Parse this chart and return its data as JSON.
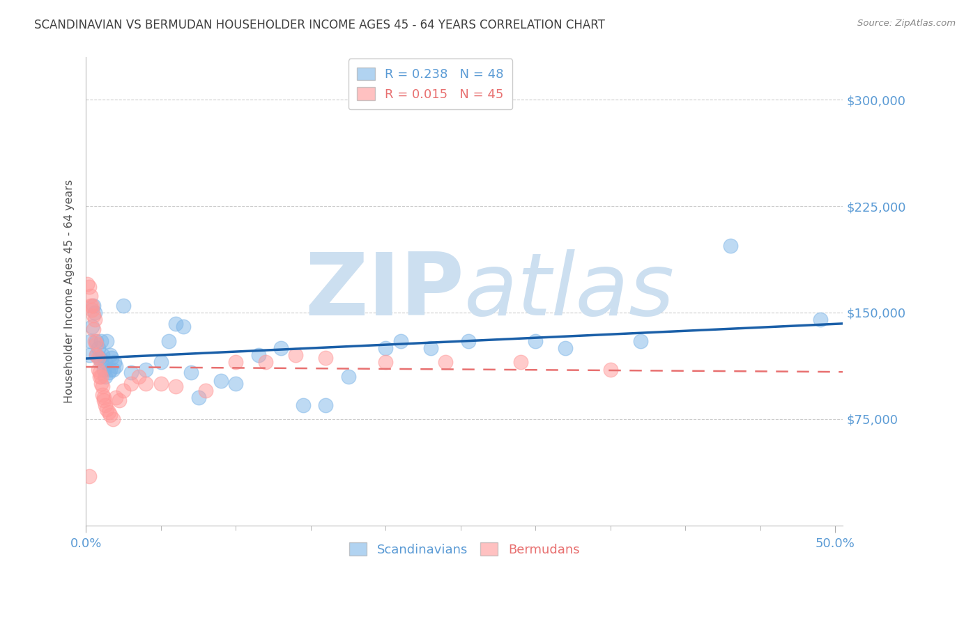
{
  "title": "SCANDINAVIAN VS BERMUDAN HOUSEHOLDER INCOME AGES 45 - 64 YEARS CORRELATION CHART",
  "source": "Source: ZipAtlas.com",
  "ylabel": "Householder Income Ages 45 - 64 years",
  "ytick_vals": [
    0,
    75000,
    150000,
    225000,
    300000
  ],
  "ytick_labels": [
    "",
    "$75,000",
    "$150,000",
    "$225,000",
    "$300,000"
  ],
  "ylim": [
    0,
    330000
  ],
  "xlim": [
    0.0,
    0.505
  ],
  "xtick_minor": [
    0.05,
    0.1,
    0.15,
    0.2,
    0.25,
    0.3,
    0.35,
    0.4,
    0.45
  ],
  "watermark_zip": "ZIP",
  "watermark_atlas": "atlas",
  "scandinavians_x": [
    0.002,
    0.003,
    0.004,
    0.005,
    0.006,
    0.007,
    0.007,
    0.008,
    0.009,
    0.01,
    0.01,
    0.011,
    0.012,
    0.013,
    0.013,
    0.014,
    0.015,
    0.016,
    0.016,
    0.017,
    0.018,
    0.019,
    0.02,
    0.025,
    0.03,
    0.04,
    0.05,
    0.055,
    0.06,
    0.065,
    0.07,
    0.075,
    0.09,
    0.1,
    0.115,
    0.13,
    0.145,
    0.16,
    0.175,
    0.2,
    0.21,
    0.23,
    0.255,
    0.3,
    0.32,
    0.37,
    0.43,
    0.49
  ],
  "scandinavians_y": [
    120000,
    130000,
    140000,
    155000,
    150000,
    130000,
    120000,
    125000,
    118000,
    115000,
    130000,
    120000,
    110000,
    105000,
    115000,
    130000,
    108000,
    110000,
    120000,
    118000,
    110000,
    115000,
    112000,
    155000,
    108000,
    110000,
    115000,
    130000,
    142000,
    140000,
    108000,
    90000,
    102000,
    100000,
    120000,
    125000,
    85000,
    85000,
    105000,
    125000,
    130000,
    125000,
    130000,
    130000,
    125000,
    130000,
    197000,
    145000
  ],
  "bermudans_x": [
    0.001,
    0.002,
    0.003,
    0.003,
    0.004,
    0.005,
    0.005,
    0.006,
    0.006,
    0.007,
    0.007,
    0.008,
    0.008,
    0.009,
    0.009,
    0.01,
    0.01,
    0.011,
    0.011,
    0.012,
    0.012,
    0.013,
    0.014,
    0.015,
    0.016,
    0.018,
    0.02,
    0.022,
    0.025,
    0.03,
    0.035,
    0.04,
    0.05,
    0.06,
    0.08,
    0.1,
    0.12,
    0.14,
    0.16,
    0.2,
    0.24,
    0.29,
    0.35,
    0.002,
    0.004
  ],
  "bermudans_y": [
    170000,
    168000,
    162000,
    155000,
    152000,
    148000,
    138000,
    145000,
    130000,
    128000,
    120000,
    118000,
    110000,
    108000,
    105000,
    105000,
    100000,
    98000,
    92000,
    90000,
    88000,
    85000,
    82000,
    80000,
    78000,
    75000,
    90000,
    88000,
    95000,
    100000,
    105000,
    100000,
    100000,
    98000,
    95000,
    115000,
    115000,
    120000,
    118000,
    115000,
    115000,
    115000,
    110000,
    35000,
    155000
  ],
  "scandinavians_color": "#7EB6E8",
  "bermudans_color": "#FF9999",
  "line_scandinavians_color": "#1A5FA8",
  "line_bermudans_color": "#E87070",
  "legend_R_scand": "R = 0.238",
  "legend_N_scand": "N = 48",
  "legend_R_berm": "R = 0.015",
  "legend_N_berm": "N = 45",
  "background_color": "#FFFFFF",
  "grid_color": "#CCCCCC",
  "title_color": "#404040",
  "axis_label_color": "#555555",
  "tick_label_color": "#5B9BD5",
  "pink_text_color": "#E87070",
  "watermark_color": "#CCDFF0",
  "source_color": "#888888"
}
